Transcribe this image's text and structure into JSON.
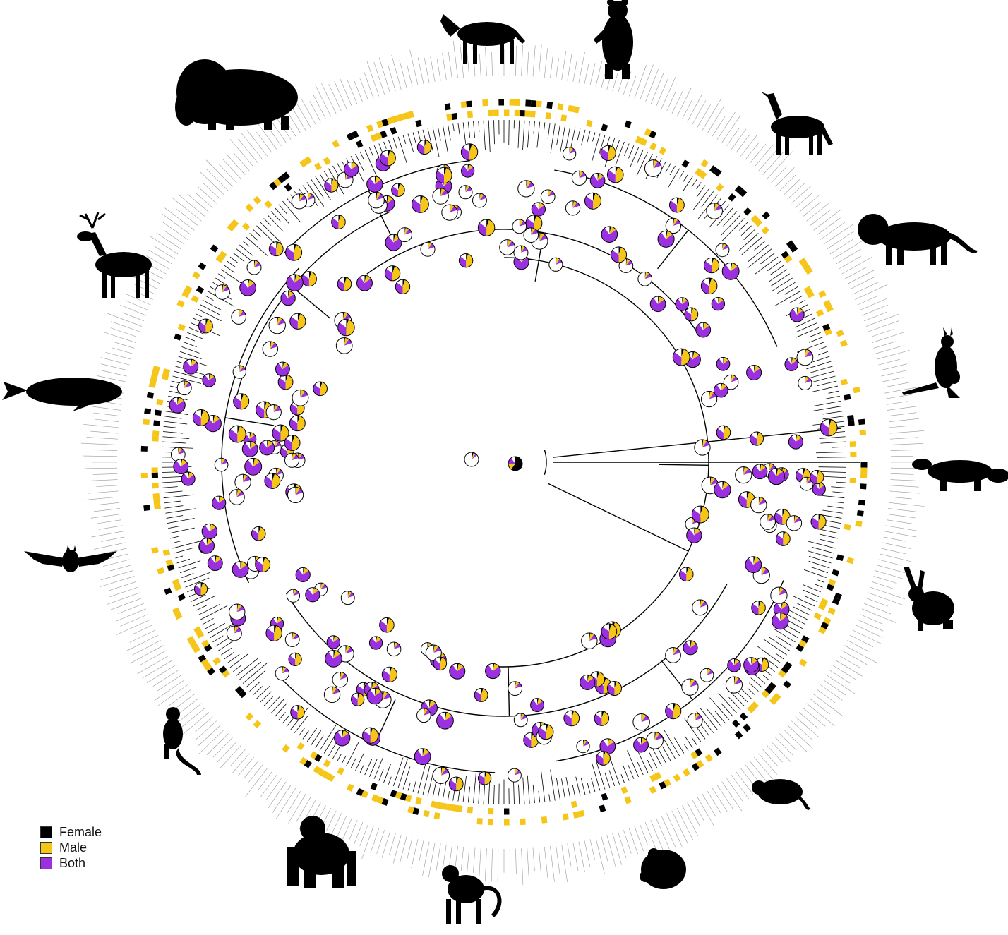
{
  "legend": {
    "items": [
      {
        "label": "Female",
        "color": "#000000"
      },
      {
        "label": "Male",
        "color": "#F5C518"
      },
      {
        "label": "Both",
        "color": "#9B30E0"
      }
    ]
  },
  "colors": {
    "female": "#000000",
    "male": "#F5C518",
    "both": "#9B30E0",
    "none": "#FFFFFF",
    "branch": "#000000",
    "tip_label": "#9a9a9a"
  },
  "silhouettes": [
    {
      "name": "zebra-icon"
    },
    {
      "name": "bear-icon"
    },
    {
      "name": "wolf-icon"
    },
    {
      "name": "lion-icon"
    },
    {
      "name": "kangaroo-icon"
    },
    {
      "name": "platypus-icon"
    },
    {
      "name": "hare-icon"
    },
    {
      "name": "rat-icon"
    },
    {
      "name": "hamster-icon"
    },
    {
      "name": "monkey-icon"
    },
    {
      "name": "gorilla-icon"
    },
    {
      "name": "marmoset-icon"
    },
    {
      "name": "bat-icon"
    },
    {
      "name": "whale-icon"
    },
    {
      "name": "deer-icon"
    },
    {
      "name": "bison-icon"
    }
  ]
}
